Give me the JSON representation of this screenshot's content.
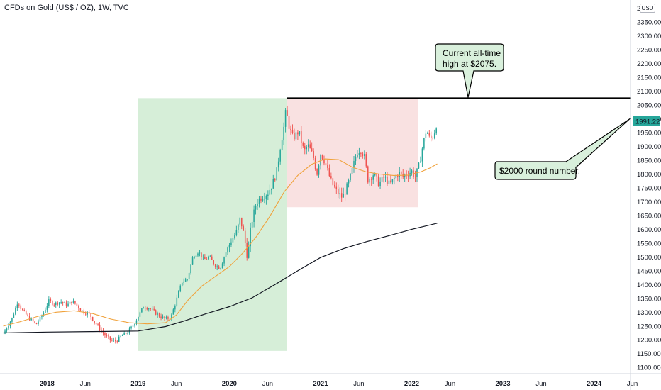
{
  "header": {
    "title": "CFDs on Gold (US$ / OZ), 1W, TVC",
    "currency": "USD"
  },
  "colors": {
    "up_candle": "#26a69a",
    "down_candle": "#ef5350",
    "ma_fast": "#f0a23c",
    "ma_slow": "#131722",
    "rally_zone": "#d6eed8",
    "range_zone": "#f9e1e1",
    "callout_fill": "#d9f0dc",
    "price_tag": "#26a69a"
  },
  "annotations": {
    "ath_label": "Current all-time high at $2075.",
    "round_label": "$2000 round number.",
    "price_tag": "1991.22"
  },
  "chart_data": {
    "type": "candlestick",
    "title": "CFDs on Gold (US$ / OZ), 1W, TVC",
    "interval": "1W",
    "y_axis": {
      "position": "right",
      "range": [
        1080,
        2425
      ],
      "ticks": [
        2350,
        2300,
        2250,
        2200,
        2150,
        2100,
        2050,
        2000,
        1950,
        1900,
        1850,
        1800,
        1750,
        1700,
        1650,
        1600,
        1550,
        1500,
        1450,
        1400,
        1350,
        1300,
        1250,
        1200,
        1150,
        1100
      ],
      "tick_labels": [
        "2350.00",
        "2300.00",
        "2250.00",
        "2200.00",
        "2150.00",
        "2100.00",
        "2050.00",
        "2000.00",
        "1950.00",
        "1900.00",
        "1850.00",
        "1800.00",
        "1750.00",
        "1700.00",
        "1650.00",
        "1600.00",
        "1550.00",
        "1500.00",
        "1450.00",
        "1400.00",
        "1350.00",
        "1300.00",
        "1250.00",
        "1200.00",
        "1150.00",
        "1100.00"
      ],
      "top_label": "2"
    },
    "x_axis": {
      "range": [
        2017.5,
        2024.4
      ],
      "ticks": [
        2018.0,
        2018.42,
        2019.0,
        2019.42,
        2020.0,
        2020.42,
        2021.0,
        2021.42,
        2022.0,
        2022.42,
        2023.0,
        2023.42,
        2024.0,
        2024.42
      ],
      "tick_labels": [
        "2018",
        "Jun",
        "2019",
        "Jun",
        "2020",
        "Jun",
        "2021",
        "Jun",
        "2022",
        "Jun",
        "2023",
        "Jun",
        "2024",
        "Jun"
      ]
    },
    "grid": false,
    "close_path": [
      [
        2017.52,
        1222
      ],
      [
        2017.62,
        1280
      ],
      [
        2017.68,
        1340
      ],
      [
        2017.72,
        1310
      ],
      [
        2017.8,
        1280
      ],
      [
        2017.88,
        1255
      ],
      [
        2017.95,
        1290
      ],
      [
        2018.02,
        1340
      ],
      [
        2018.08,
        1330
      ],
      [
        2018.15,
        1338
      ],
      [
        2018.22,
        1325
      ],
      [
        2018.28,
        1340
      ],
      [
        2018.34,
        1320
      ],
      [
        2018.4,
        1300
      ],
      [
        2018.46,
        1296
      ],
      [
        2018.52,
        1265
      ],
      [
        2018.58,
        1240
      ],
      [
        2018.64,
        1215
      ],
      [
        2018.7,
        1198
      ],
      [
        2018.76,
        1195
      ],
      [
        2018.82,
        1215
      ],
      [
        2018.88,
        1225
      ],
      [
        2018.94,
        1250
      ],
      [
        2019.0,
        1285
      ],
      [
        2019.06,
        1320
      ],
      [
        2019.12,
        1315
      ],
      [
        2019.18,
        1300
      ],
      [
        2019.24,
        1285
      ],
      [
        2019.3,
        1275
      ],
      [
        2019.36,
        1282
      ],
      [
        2019.42,
        1345
      ],
      [
        2019.48,
        1410
      ],
      [
        2019.54,
        1420
      ],
      [
        2019.6,
        1500
      ],
      [
        2019.66,
        1520
      ],
      [
        2019.72,
        1490
      ],
      [
        2019.78,
        1500
      ],
      [
        2019.84,
        1470
      ],
      [
        2019.9,
        1460
      ],
      [
        2019.96,
        1515
      ],
      [
        2020.02,
        1560
      ],
      [
        2020.08,
        1590
      ],
      [
        2020.12,
        1640
      ],
      [
        2020.16,
        1580
      ],
      [
        2020.2,
        1495
      ],
      [
        2020.24,
        1620
      ],
      [
        2020.3,
        1700
      ],
      [
        2020.36,
        1720
      ],
      [
        2020.42,
        1730
      ],
      [
        2020.48,
        1770
      ],
      [
        2020.52,
        1810
      ],
      [
        2020.56,
        1900
      ],
      [
        2020.6,
        1975
      ],
      [
        2020.62,
        2030
      ],
      [
        2020.66,
        1965
      ],
      [
        2020.7,
        1930
      ],
      [
        2020.76,
        1955
      ],
      [
        2020.82,
        1880
      ],
      [
        2020.86,
        1905
      ],
      [
        2020.92,
        1865
      ],
      [
        2020.96,
        1800
      ],
      [
        2021.0,
        1875
      ],
      [
        2021.04,
        1850
      ],
      [
        2021.08,
        1810
      ],
      [
        2021.12,
        1770
      ],
      [
        2021.18,
        1735
      ],
      [
        2021.24,
        1715
      ],
      [
        2021.28,
        1745
      ],
      [
        2021.32,
        1780
      ],
      [
        2021.36,
        1830
      ],
      [
        2021.4,
        1880
      ],
      [
        2021.44,
        1890
      ],
      [
        2021.48,
        1865
      ],
      [
        2021.52,
        1780
      ],
      [
        2021.58,
        1800
      ],
      [
        2021.64,
        1765
      ],
      [
        2021.7,
        1790
      ],
      [
        2021.76,
        1760
      ],
      [
        2021.8,
        1780
      ],
      [
        2021.86,
        1805
      ],
      [
        2021.9,
        1790
      ],
      [
        2021.94,
        1800
      ],
      [
        2022.0,
        1810
      ],
      [
        2022.04,
        1790
      ],
      [
        2022.08,
        1830
      ],
      [
        2022.12,
        1900
      ],
      [
        2022.16,
        1960
      ],
      [
        2022.2,
        1925
      ],
      [
        2022.24,
        1940
      ],
      [
        2022.28,
        1991
      ]
    ],
    "series": [
      {
        "type": "line",
        "color": "#f0a23c",
        "points": [
          [
            2017.52,
            1250
          ],
          [
            2017.7,
            1265
          ],
          [
            2017.9,
            1285
          ],
          [
            2018.1,
            1300
          ],
          [
            2018.3,
            1305
          ],
          [
            2018.5,
            1295
          ],
          [
            2018.7,
            1275
          ],
          [
            2018.9,
            1262
          ],
          [
            2019.1,
            1258
          ],
          [
            2019.3,
            1262
          ],
          [
            2019.42,
            1290
          ],
          [
            2019.55,
            1345
          ],
          [
            2019.7,
            1395
          ],
          [
            2019.85,
            1430
          ],
          [
            2020.0,
            1465
          ],
          [
            2020.15,
            1515
          ],
          [
            2020.3,
            1575
          ],
          [
            2020.45,
            1650
          ],
          [
            2020.6,
            1735
          ],
          [
            2020.75,
            1795
          ],
          [
            2020.9,
            1835
          ],
          [
            2021.05,
            1855
          ],
          [
            2021.2,
            1852
          ],
          [
            2021.35,
            1825
          ],
          [
            2021.5,
            1808
          ],
          [
            2021.65,
            1800
          ],
          [
            2021.8,
            1795
          ],
          [
            2021.95,
            1796
          ],
          [
            2022.1,
            1808
          ],
          [
            2022.2,
            1822
          ],
          [
            2022.28,
            1837
          ]
        ]
      },
      {
        "type": "line",
        "color": "#131722",
        "points": [
          [
            2017.52,
            1225
          ],
          [
            2018.0,
            1228
          ],
          [
            2018.5,
            1230
          ],
          [
            2019.0,
            1232
          ],
          [
            2019.3,
            1248
          ],
          [
            2019.5,
            1268
          ],
          [
            2019.75,
            1295
          ],
          [
            2020.0,
            1320
          ],
          [
            2020.25,
            1352
          ],
          [
            2020.5,
            1400
          ],
          [
            2020.75,
            1450
          ],
          [
            2021.0,
            1498
          ],
          [
            2021.25,
            1530
          ],
          [
            2021.5,
            1555
          ],
          [
            2021.75,
            1577
          ],
          [
            2022.0,
            1600
          ],
          [
            2022.28,
            1622
          ]
        ]
      }
    ],
    "zones": [
      {
        "from_x": 2019.0,
        "to_x": 2020.63,
        "low": 1160,
        "high": 2075,
        "color": "#d6eed8"
      },
      {
        "from_x": 2020.63,
        "to_x": 2022.07,
        "low": 1680,
        "high": 2075,
        "color": "#f9e1e1"
      }
    ],
    "horizontal_line": {
      "from_x": 2020.63,
      "value": 2075,
      "label": "Current all-time high at $2075."
    },
    "last_price": 1991.22
  }
}
